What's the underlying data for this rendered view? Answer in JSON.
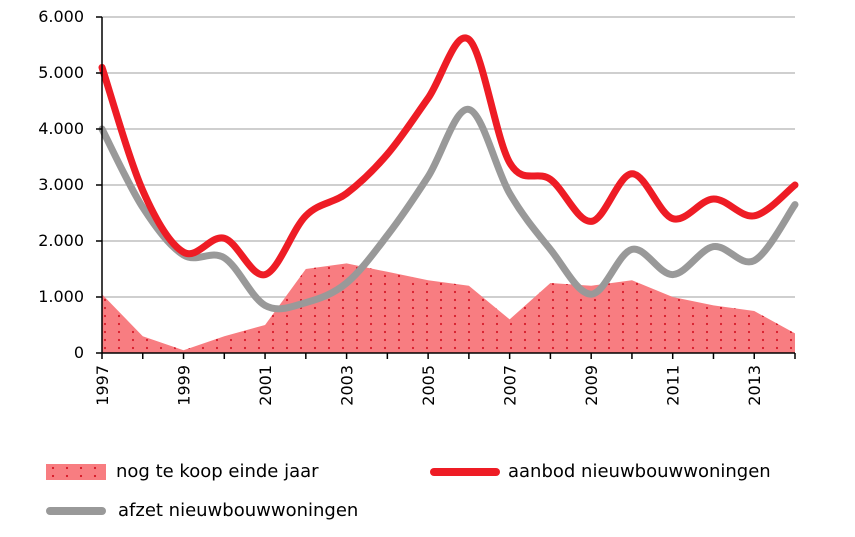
{
  "chart_data": {
    "type": "line",
    "x": [
      1997,
      1998,
      1999,
      2000,
      2001,
      2002,
      2003,
      2004,
      2005,
      2006,
      2007,
      2008,
      2009,
      2010,
      2011,
      2012,
      2013,
      2014
    ],
    "x_tick_labels": [
      "1997",
      "1999",
      "2001",
      "2003",
      "2005",
      "2007",
      "2009",
      "2011",
      "2013"
    ],
    "y_tick_labels": [
      "0",
      "1.000",
      "2.000",
      "3.000",
      "4.000",
      "5.000",
      "6.000"
    ],
    "ylim": [
      0,
      6000
    ],
    "grid": true,
    "legend_position": "bottom",
    "series": [
      {
        "name": "nog te koop einde jaar",
        "type": "area",
        "color": "#f87d81",
        "values": [
          1050,
          300,
          50,
          300,
          500,
          1500,
          1600,
          1450,
          1300,
          1200,
          600,
          1250,
          1200,
          1300,
          1000,
          850,
          750,
          350
        ]
      },
      {
        "name": "aanbod nieuwbouwwoningen",
        "type": "line",
        "color": "#ee1c25",
        "values": [
          5100,
          2900,
          1800,
          2050,
          1400,
          2450,
          2850,
          3550,
          4550,
          5600,
          3400,
          3100,
          2350,
          3200,
          2400,
          2750,
          2450,
          3000
        ]
      },
      {
        "name": "afzet nieuwbouwwoningen",
        "type": "line",
        "color": "#999999",
        "values": [
          4000,
          2600,
          1750,
          1700,
          850,
          900,
          1250,
          2100,
          3150,
          4350,
          2850,
          1850,
          1050,
          1850,
          1400,
          1900,
          1650,
          2650
        ]
      }
    ]
  },
  "legend": {
    "area_label": "nog te koop einde jaar",
    "red_label": "aanbod nieuwbouwwoningen",
    "grey_label": "afzet nieuwbouwwoningen"
  }
}
